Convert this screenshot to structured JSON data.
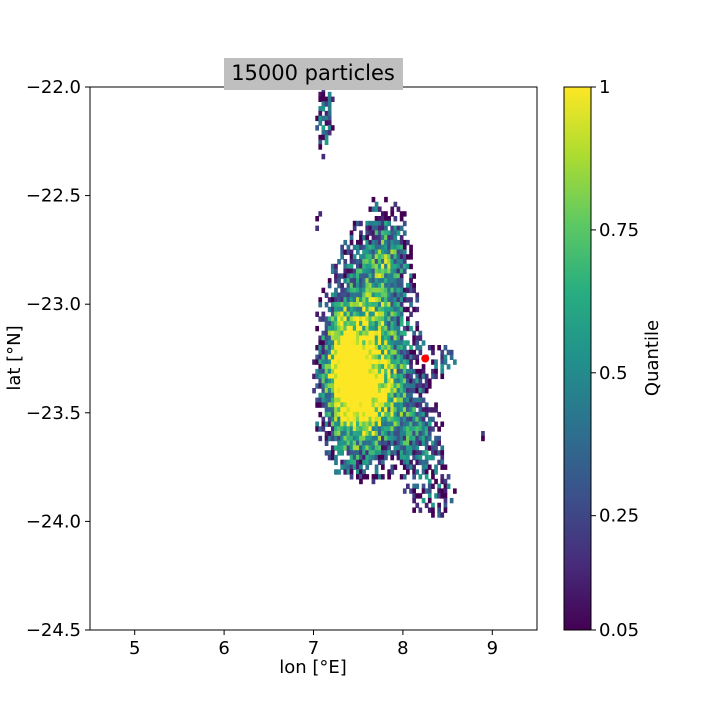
{
  "chart_data": {
    "type": "heatmap",
    "title": "15000 particles",
    "xlabel": "lon [°E]",
    "ylabel": "lat [°N]",
    "xlim": [
      4.5,
      9.5
    ],
    "ylim": [
      -24.5,
      -22.0
    ],
    "xticks": [
      5,
      6,
      7,
      8,
      9
    ],
    "xtick_labels": [
      "5",
      "6",
      "7",
      "8",
      "9"
    ],
    "yticks": [
      -22.0,
      -22.5,
      -23.0,
      -23.5,
      -24.0,
      -24.5
    ],
    "ytick_labels": [
      "−22.0",
      "−22.5",
      "−23.0",
      "−23.5",
      "−24.0",
      "−24.5"
    ],
    "grid": false,
    "colormap": "viridis",
    "colorbar": {
      "label": "Quantile",
      "ticks": [
        0.05,
        0.25,
        0.5,
        0.75,
        1
      ],
      "tick_labels": [
        "0.05",
        "0.25",
        "0.5",
        "0.75",
        "1"
      ],
      "range": [
        0.05,
        1
      ]
    },
    "source_point": {
      "lon": 8.25,
      "lat": -23.25,
      "color": "#ff0000"
    },
    "blobs": [
      {
        "lon": 7.45,
        "lat": -23.4,
        "slon": 0.22,
        "slat": 0.2,
        "w": 1.0
      },
      {
        "lon": 7.3,
        "lat": -23.25,
        "slon": 0.12,
        "slat": 0.15,
        "w": 0.65
      },
      {
        "lon": 7.6,
        "lat": -23.05,
        "slon": 0.3,
        "slat": 0.26,
        "w": 0.55
      },
      {
        "lon": 7.8,
        "lat": -23.4,
        "slon": 0.28,
        "slat": 0.18,
        "w": 0.5
      },
      {
        "lon": 7.8,
        "lat": -22.78,
        "slon": 0.15,
        "slat": 0.16,
        "w": 0.45
      },
      {
        "lon": 7.12,
        "lat": -22.15,
        "slon": 0.07,
        "slat": 0.12,
        "w": 0.35
      },
      {
        "lon": 8.15,
        "lat": -23.6,
        "slon": 0.18,
        "slat": 0.1,
        "w": 0.35
      },
      {
        "lon": 8.3,
        "lat": -23.85,
        "slon": 0.2,
        "slat": 0.1,
        "w": 0.28
      },
      {
        "lon": 8.45,
        "lat": -23.25,
        "slon": 0.1,
        "slat": 0.05,
        "w": 0.25
      },
      {
        "lon": 7.0,
        "lat": -22.6,
        "slon": 0.08,
        "slat": 0.05,
        "w": 0.15
      },
      {
        "lon": 8.85,
        "lat": -23.6,
        "slon": 0.05,
        "slat": 0.04,
        "w": 0.15
      }
    ]
  }
}
